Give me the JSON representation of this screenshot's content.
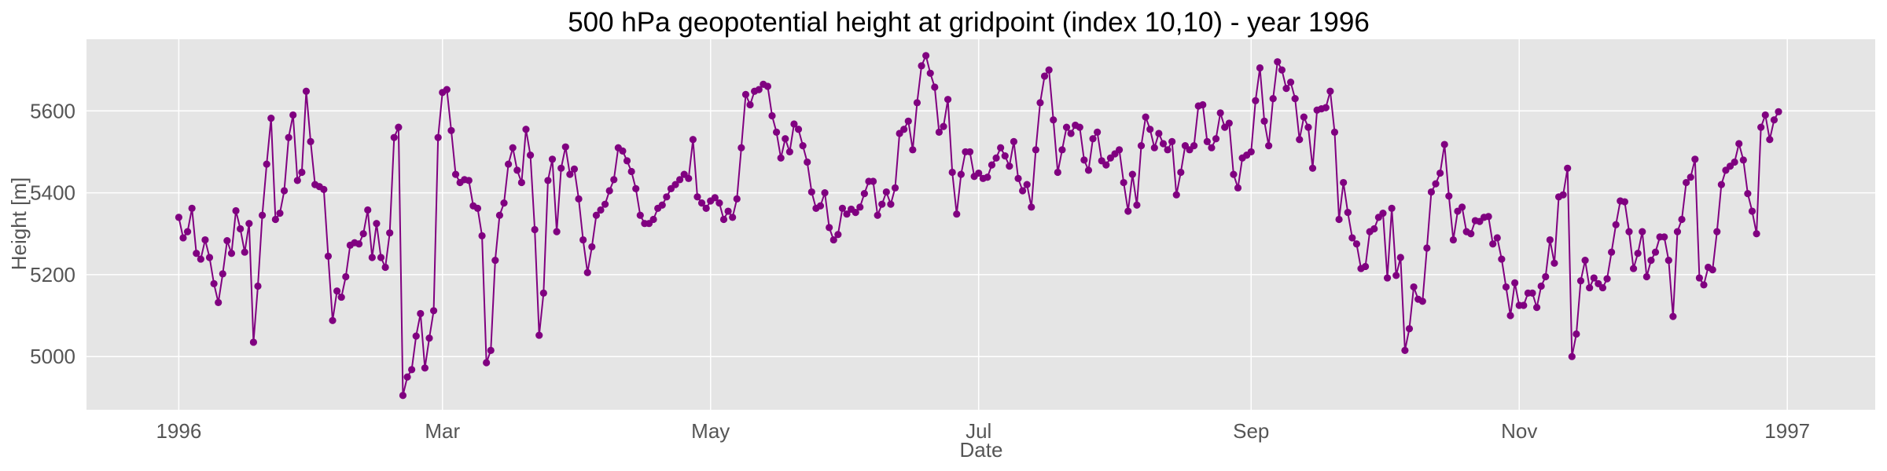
{
  "chart_data": {
    "type": "line",
    "title": "500 hPa geopotential height at gridpoint (index 10,10) - year 1996",
    "xlabel": "Date",
    "ylabel": "Height [m]",
    "x_start": "1996-01-01",
    "x_step_days": 1,
    "xlim": [
      "1995-12-11",
      "1997-01-21"
    ],
    "ylim": [
      4870,
      5775
    ],
    "x_ticks": [
      {
        "date": "1996-01-01",
        "label": "1996"
      },
      {
        "date": "1996-03-01",
        "label": "Mar"
      },
      {
        "date": "1996-05-01",
        "label": "May"
      },
      {
        "date": "1996-07-01",
        "label": "Jul"
      },
      {
        "date": "1996-09-01",
        "label": "Sep"
      },
      {
        "date": "1996-11-01",
        "label": "Nov"
      },
      {
        "date": "1997-01-01",
        "label": "1997"
      }
    ],
    "y_ticks": [
      5000,
      5200,
      5400,
      5600
    ],
    "grid": true,
    "legend": "none",
    "colors": {
      "line": "#800080",
      "background": "#e5e5e5",
      "grid": "#ffffff"
    },
    "series": [
      {
        "values": [
          5340,
          5290,
          5305,
          5362,
          5252,
          5238,
          5285,
          5242,
          5178,
          5132,
          5202,
          5283,
          5252,
          5356,
          5312,
          5255,
          5325,
          5035,
          5172,
          5345,
          5470,
          5582,
          5335,
          5350,
          5405,
          5535,
          5590,
          5430,
          5450,
          5648,
          5525,
          5420,
          5415,
          5408,
          5245,
          5088,
          5160,
          5145,
          5195,
          5272,
          5278,
          5275,
          5300,
          5358,
          5242,
          5325,
          5242,
          5218,
          5302,
          5535,
          5560,
          4905,
          4950,
          4968,
          5050,
          5105,
          4972,
          5045,
          5112,
          5535,
          5645,
          5652,
          5552,
          5445,
          5425,
          5432,
          5430,
          5368,
          5362,
          5295,
          4985,
          5015,
          5235,
          5345,
          5375,
          5470,
          5510,
          5455,
          5425,
          5555,
          5492,
          5310,
          5052,
          5155,
          5430,
          5482,
          5305,
          5460,
          5512,
          5445,
          5458,
          5385,
          5285,
          5205,
          5268,
          5345,
          5358,
          5372,
          5405,
          5432,
          5510,
          5502,
          5478,
          5452,
          5410,
          5345,
          5325,
          5325,
          5335,
          5362,
          5370,
          5390,
          5410,
          5420,
          5432,
          5445,
          5435,
          5530,
          5390,
          5375,
          5362,
          5380,
          5388,
          5375,
          5335,
          5355,
          5340,
          5385,
          5510,
          5640,
          5615,
          5648,
          5652,
          5665,
          5660,
          5588,
          5548,
          5485,
          5532,
          5500,
          5568,
          5555,
          5515,
          5475,
          5402,
          5362,
          5368,
          5400,
          5315,
          5285,
          5298,
          5362,
          5348,
          5360,
          5352,
          5365,
          5398,
          5428,
          5428,
          5345,
          5372,
          5402,
          5372,
          5412,
          5545,
          5555,
          5575,
          5505,
          5620,
          5710,
          5735,
          5692,
          5658,
          5548,
          5562,
          5628,
          5450,
          5348,
          5445,
          5500,
          5500,
          5440,
          5448,
          5435,
          5438,
          5468,
          5485,
          5510,
          5490,
          5465,
          5525,
          5435,
          5405,
          5420,
          5365,
          5505,
          5620,
          5685,
          5700,
          5578,
          5450,
          5505,
          5560,
          5545,
          5565,
          5560,
          5480,
          5455,
          5532,
          5548,
          5478,
          5468,
          5485,
          5495,
          5505,
          5425,
          5355,
          5445,
          5370,
          5515,
          5585,
          5555,
          5510,
          5545,
          5520,
          5505,
          5525,
          5395,
          5450,
          5515,
          5505,
          5515,
          5612,
          5615,
          5525,
          5510,
          5532,
          5595,
          5560,
          5570,
          5445,
          5412,
          5485,
          5492,
          5500,
          5625,
          5705,
          5575,
          5515,
          5630,
          5720,
          5700,
          5655,
          5670,
          5630,
          5530,
          5585,
          5560,
          5460,
          5602,
          5605,
          5608,
          5648,
          5548,
          5335,
          5425,
          5352,
          5290,
          5275,
          5215,
          5220,
          5305,
          5312,
          5340,
          5350,
          5192,
          5362,
          5198,
          5242,
          5015,
          5068,
          5170,
          5140,
          5135,
          5265,
          5402,
          5422,
          5448,
          5518,
          5392,
          5285,
          5355,
          5365,
          5305,
          5300,
          5332,
          5330,
          5340,
          5342,
          5275,
          5290,
          5238,
          5170,
          5100,
          5180,
          5125,
          5125,
          5155,
          5155,
          5120,
          5172,
          5195,
          5285,
          5228,
          5390,
          5395,
          5460,
          5000,
          5055,
          5185,
          5235,
          5168,
          5192,
          5178,
          5168,
          5190,
          5255,
          5322,
          5380,
          5378,
          5305,
          5215,
          5252,
          5305,
          5195,
          5235,
          5255,
          5292,
          5292,
          5235,
          5098,
          5305,
          5335,
          5425,
          5438,
          5482,
          5192,
          5175,
          5218,
          5212,
          5305,
          5420,
          5455,
          5465,
          5475,
          5520,
          5480,
          5398,
          5355,
          5300,
          5560,
          5590,
          5530,
          5578,
          5598
        ]
      }
    ]
  }
}
